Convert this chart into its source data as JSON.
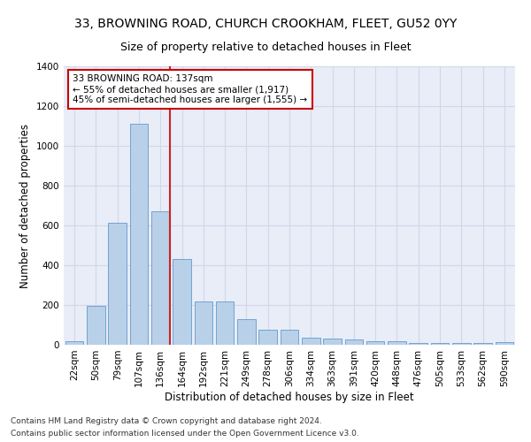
{
  "title1": "33, BROWNING ROAD, CHURCH CROOKHAM, FLEET, GU52 0YY",
  "title2": "Size of property relative to detached houses in Fleet",
  "xlabel": "Distribution of detached houses by size in Fleet",
  "ylabel": "Number of detached properties",
  "categories": [
    "22sqm",
    "50sqm",
    "79sqm",
    "107sqm",
    "136sqm",
    "164sqm",
    "192sqm",
    "221sqm",
    "249sqm",
    "278sqm",
    "306sqm",
    "334sqm",
    "363sqm",
    "391sqm",
    "420sqm",
    "448sqm",
    "476sqm",
    "505sqm",
    "533sqm",
    "562sqm",
    "590sqm"
  ],
  "values": [
    20,
    195,
    615,
    1110,
    670,
    430,
    220,
    220,
    130,
    75,
    75,
    35,
    30,
    27,
    20,
    16,
    10,
    10,
    10,
    10,
    12
  ],
  "bar_color": "#b8d0e8",
  "bar_edge_color": "#6699cc",
  "vline_bar_index": 4,
  "vline_color": "#cc2222",
  "annotation_text": "33 BROWNING ROAD: 137sqm\n← 55% of detached houses are smaller (1,917)\n45% of semi-detached houses are larger (1,555) →",
  "annotation_box_color": "#ffffff",
  "annotation_border_color": "#cc0000",
  "ylim": [
    0,
    1400
  ],
  "yticks": [
    0,
    200,
    400,
    600,
    800,
    1000,
    1200,
    1400
  ],
  "grid_color": "#d0d8e8",
  "background_color": "#e8edf8",
  "footer1": "Contains HM Land Registry data © Crown copyright and database right 2024.",
  "footer2": "Contains public sector information licensed under the Open Government Licence v3.0.",
  "title1_fontsize": 10,
  "title2_fontsize": 9,
  "xlabel_fontsize": 8.5,
  "ylabel_fontsize": 8.5,
  "tick_fontsize": 7.5,
  "annot_fontsize": 7.5,
  "footer_fontsize": 6.5
}
